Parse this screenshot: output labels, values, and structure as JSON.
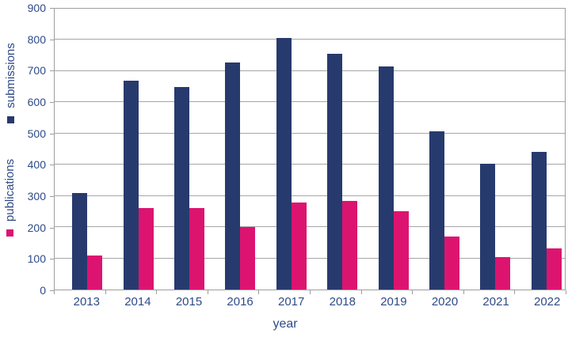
{
  "chart_data": {
    "type": "bar",
    "title": "",
    "xlabel": "year",
    "ylabel": "",
    "categories": [
      "2013",
      "2014",
      "2015",
      "2016",
      "2017",
      "2018",
      "2019",
      "2020",
      "2021",
      "2022"
    ],
    "series": [
      {
        "name": "submissions",
        "color": "#273a6e",
        "values": [
          310,
          670,
          650,
          727,
          805,
          755,
          715,
          507,
          403,
          440
        ]
      },
      {
        "name": "publications",
        "color": "#dc1470",
        "values": [
          110,
          260,
          262,
          200,
          280,
          285,
          250,
          170,
          103,
          132
        ]
      }
    ],
    "ylim": [
      0,
      900
    ],
    "yticks": [
      0,
      100,
      200,
      300,
      400,
      500,
      600,
      700,
      800,
      900
    ],
    "grid": true,
    "legend_position": "left edge, rotated 90 degrees, marker below each series name"
  },
  "legend": {
    "submissions_label": "submissions",
    "publications_label": "publications"
  },
  "axis": {
    "x_title": "year"
  },
  "colors": {
    "submissions_bar": "#273a6e",
    "publications_bar": "#dc1470",
    "axis_text": "#2e4a87",
    "gridline": "#a6a6a6",
    "background": "#ffffff"
  }
}
